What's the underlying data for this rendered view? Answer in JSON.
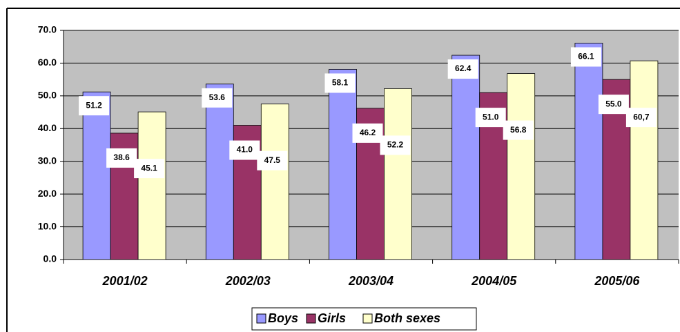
{
  "chart_data": {
    "type": "bar",
    "categories": [
      "2001/02",
      "2002/03",
      "2003/04",
      "2004/05",
      "2005/06"
    ],
    "series": [
      {
        "name": "Boys",
        "color": "#9999ff",
        "values": [
          51.2,
          53.6,
          58.1,
          62.4,
          66.1
        ],
        "value_labels": [
          "51.2",
          "53.6",
          "58.1",
          "62.4",
          "66.1"
        ]
      },
      {
        "name": "Girls",
        "color": "#993366",
        "values": [
          38.6,
          41.0,
          46.2,
          51.0,
          55.0
        ],
        "value_labels": [
          "38.6",
          "41.0",
          "46.2",
          "51.0",
          "55.0"
        ]
      },
      {
        "name": "Both sexes",
        "color": "#ffffcc",
        "values": [
          45.1,
          47.5,
          52.2,
          56.8,
          60.7
        ],
        "value_labels": [
          "45.1",
          "47.5",
          "52.2",
          "56.8",
          "60,7"
        ]
      }
    ],
    "ylim": [
      0,
      70
    ],
    "yticks": [
      {
        "value": 0,
        "label": "0.0"
      },
      {
        "value": 10,
        "label": "10.0"
      },
      {
        "value": 20,
        "label": "20.0"
      },
      {
        "value": 30,
        "label": "30.0"
      },
      {
        "value": 40,
        "label": "40.0"
      },
      {
        "value": 50,
        "label": "50.0"
      },
      {
        "value": 60,
        "label": "60.0"
      },
      {
        "value": 70,
        "label": "70.0"
      }
    ],
    "grid": true,
    "legend": "bottom"
  }
}
